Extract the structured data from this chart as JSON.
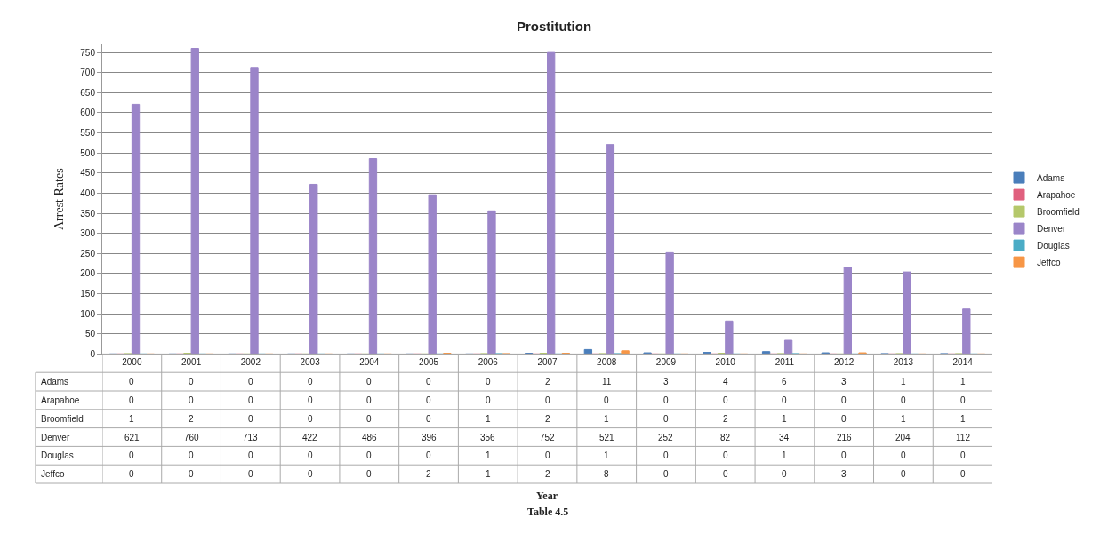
{
  "chart_data": {
    "type": "bar",
    "title": "Prostitution",
    "ylabel": "Arrest Rates",
    "categories": [
      "2000",
      "2001",
      "2002",
      "2003",
      "2004",
      "2005",
      "2006",
      "2007",
      "2008",
      "2009",
      "2010",
      "2011",
      "2012",
      "2013",
      "2014"
    ],
    "series": [
      {
        "name": "Adams",
        "color": "#4a7ebb",
        "values": [
          0,
          0,
          0,
          0,
          0,
          0,
          0,
          2,
          11,
          3,
          4,
          6,
          3,
          1,
          1
        ]
      },
      {
        "name": "Arapahoe",
        "color": "#e0607e",
        "values": [
          0,
          0,
          0,
          0,
          0,
          0,
          0,
          0,
          0,
          0,
          0,
          0,
          0,
          0,
          0
        ]
      },
      {
        "name": "Broomfield",
        "color": "#b5c86b",
        "values": [
          1,
          2,
          0,
          0,
          0,
          0,
          1,
          2,
          1,
          0,
          2,
          1,
          0,
          1,
          1
        ]
      },
      {
        "name": "Denver",
        "color": "#9b85c9",
        "values": [
          621,
          760,
          713,
          422,
          486,
          396,
          356,
          752,
          521,
          252,
          82,
          34,
          216,
          204,
          112
        ]
      },
      {
        "name": "Douglas",
        "color": "#4bacc6",
        "values": [
          0,
          0,
          0,
          0,
          0,
          0,
          1,
          0,
          1,
          0,
          0,
          1,
          0,
          0,
          0
        ]
      },
      {
        "name": "Jeffco",
        "color": "#f79646",
        "values": [
          0,
          0,
          0,
          0,
          0,
          2,
          1,
          2,
          8,
          0,
          0,
          0,
          3,
          0,
          0
        ]
      }
    ],
    "ylim": [
      0,
      770
    ],
    "yticks": [
      0,
      50,
      100,
      150,
      200,
      250,
      300,
      350,
      400,
      450,
      500,
      550,
      600,
      650,
      700,
      750
    ],
    "grid": "y",
    "legend": "right",
    "data_labels": true,
    "annotations": [
      "Year",
      "Table 4.5"
    ]
  }
}
